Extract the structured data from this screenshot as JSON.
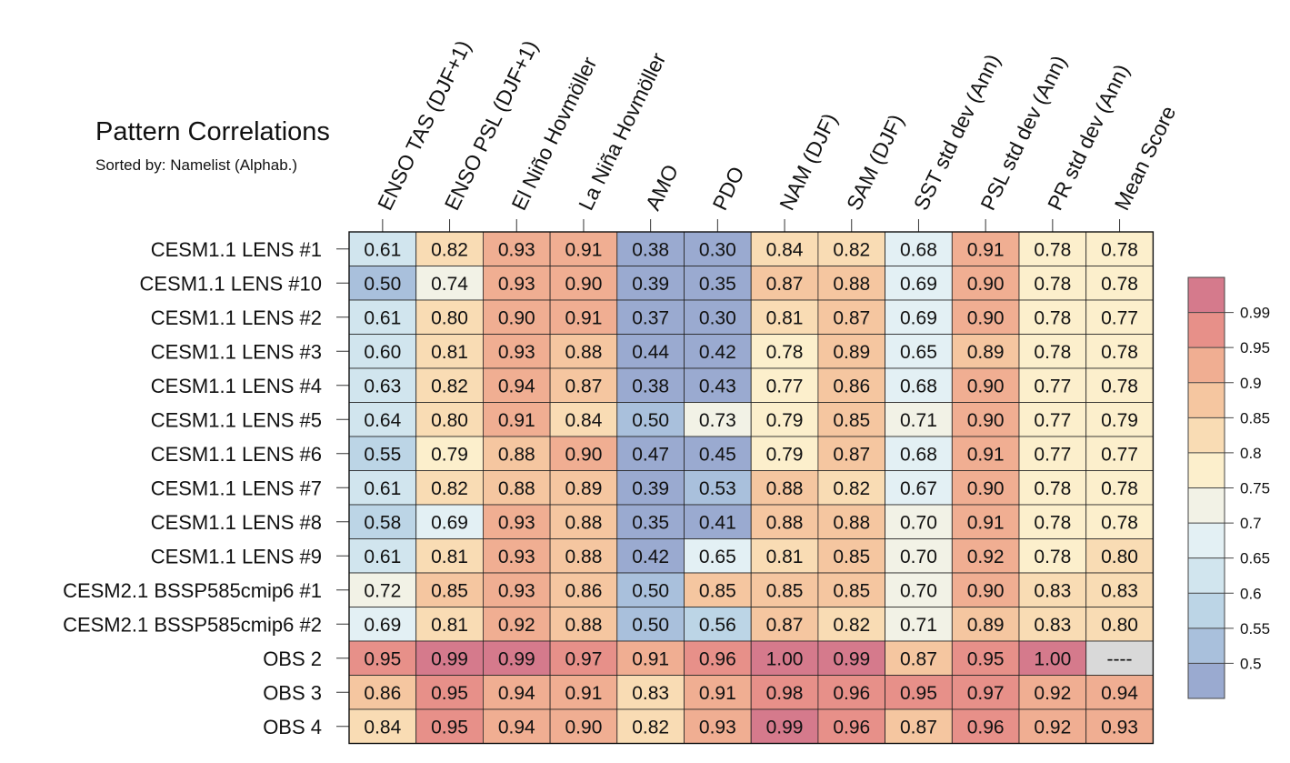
{
  "chart_data": {
    "type": "heatmap",
    "title": "Pattern Correlations",
    "subtitle": "Sorted by: Namelist (Alphab.)",
    "columns": [
      "ENSO TAS (DJF+1)",
      "ENSO PSL (DJF+1)",
      "El Niño Hovmöller",
      "La Niña Hovmöller",
      "AMO",
      "PDO",
      "NAM (DJF)",
      "SAM (DJF)",
      "SST std dev (Ann)",
      "PSL std dev (Ann)",
      "PR std dev (Ann)",
      "Mean Score"
    ],
    "rows": [
      "CESM1.1 LENS #1",
      "CESM1.1 LENS #10",
      "CESM1.1 LENS #2",
      "CESM1.1 LENS #3",
      "CESM1.1 LENS #4",
      "CESM1.1 LENS #5",
      "CESM1.1 LENS #6",
      "CESM1.1 LENS #7",
      "CESM1.1 LENS #8",
      "CESM1.1 LENS #9",
      "CESM2.1 BSSP585cmip6 #1",
      "CESM2.1 BSSP585cmip6 #2",
      "OBS 2",
      "OBS 3",
      "OBS 4"
    ],
    "values": [
      [
        "0.61",
        "0.82",
        "0.93",
        "0.91",
        "0.38",
        "0.30",
        "0.84",
        "0.82",
        "0.68",
        "0.91",
        "0.78",
        "0.78"
      ],
      [
        "0.50",
        "0.74",
        "0.93",
        "0.90",
        "0.39",
        "0.35",
        "0.87",
        "0.88",
        "0.69",
        "0.90",
        "0.78",
        "0.78"
      ],
      [
        "0.61",
        "0.80",
        "0.90",
        "0.91",
        "0.37",
        "0.30",
        "0.81",
        "0.87",
        "0.69",
        "0.90",
        "0.78",
        "0.77"
      ],
      [
        "0.60",
        "0.81",
        "0.93",
        "0.88",
        "0.44",
        "0.42",
        "0.78",
        "0.89",
        "0.65",
        "0.89",
        "0.78",
        "0.78"
      ],
      [
        "0.63",
        "0.82",
        "0.94",
        "0.87",
        "0.38",
        "0.43",
        "0.77",
        "0.86",
        "0.68",
        "0.90",
        "0.77",
        "0.78"
      ],
      [
        "0.64",
        "0.80",
        "0.91",
        "0.84",
        "0.50",
        "0.73",
        "0.79",
        "0.85",
        "0.71",
        "0.90",
        "0.77",
        "0.79"
      ],
      [
        "0.55",
        "0.79",
        "0.88",
        "0.90",
        "0.47",
        "0.45",
        "0.79",
        "0.87",
        "0.68",
        "0.91",
        "0.77",
        "0.77"
      ],
      [
        "0.61",
        "0.82",
        "0.88",
        "0.89",
        "0.39",
        "0.53",
        "0.88",
        "0.82",
        "0.67",
        "0.90",
        "0.78",
        "0.78"
      ],
      [
        "0.58",
        "0.69",
        "0.93",
        "0.88",
        "0.35",
        "0.41",
        "0.88",
        "0.88",
        "0.70",
        "0.91",
        "0.78",
        "0.78"
      ],
      [
        "0.61",
        "0.81",
        "0.93",
        "0.88",
        "0.42",
        "0.65",
        "0.81",
        "0.85",
        "0.70",
        "0.92",
        "0.78",
        "0.80"
      ],
      [
        "0.72",
        "0.85",
        "0.93",
        "0.86",
        "0.50",
        "0.85",
        "0.85",
        "0.85",
        "0.70",
        "0.90",
        "0.83",
        "0.83"
      ],
      [
        "0.69",
        "0.81",
        "0.92",
        "0.88",
        "0.50",
        "0.56",
        "0.87",
        "0.82",
        "0.71",
        "0.89",
        "0.83",
        "0.80"
      ],
      [
        "0.95",
        "0.99",
        "0.99",
        "0.97",
        "0.91",
        "0.96",
        "1.00",
        "0.99",
        "0.87",
        "0.95",
        "1.00",
        "----"
      ],
      [
        "0.86",
        "0.95",
        "0.94",
        "0.91",
        "0.83",
        "0.91",
        "0.98",
        "0.96",
        "0.95",
        "0.97",
        "0.92",
        "0.94"
      ],
      [
        "0.84",
        "0.95",
        "0.94",
        "0.90",
        "0.82",
        "0.93",
        "0.99",
        "0.96",
        "0.87",
        "0.96",
        "0.92",
        "0.93"
      ]
    ],
    "missing_value_text": "----",
    "colorbar": {
      "levels": [
        0.5,
        0.55,
        0.6,
        0.65,
        0.7,
        0.75,
        0.8,
        0.85,
        0.9,
        0.95,
        0.99
      ],
      "level_labels": [
        "0.5",
        "0.55",
        "0.6",
        "0.65",
        "0.7",
        "0.75",
        "0.8",
        "0.85",
        "0.9",
        "0.95",
        "0.99"
      ],
      "colors": [
        "#9aaad0",
        "#a9c0dc",
        "#bcd5e6",
        "#d1e5ee",
        "#e3f0f4",
        "#f2f2e6",
        "#fcefcc",
        "#f9dcb4",
        "#f5c6a0",
        "#f0ae92",
        "#e79089",
        "#d57a8c"
      ],
      "missing_color": "#d9d9d9"
    }
  }
}
